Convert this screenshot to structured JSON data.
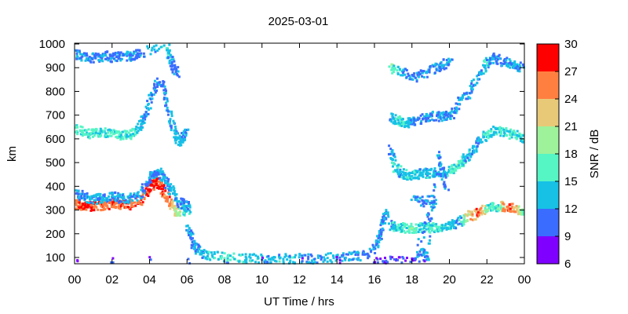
{
  "chart_data": {
    "type": "scatter",
    "title": "2025-03-01",
    "xlabel": "UT Time / hrs",
    "ylabel": "km",
    "xlim": [
      0,
      24
    ],
    "ylim": [
      80,
      1000
    ],
    "x_ticks": [
      "00",
      "02",
      "04",
      "06",
      "08",
      "10",
      "12",
      "14",
      "16",
      "18",
      "20",
      "22",
      "00"
    ],
    "y_ticks": [
      100,
      200,
      300,
      400,
      500,
      600,
      700,
      800,
      900,
      1000
    ],
    "colorbar": {
      "label": "SNR / dB",
      "min": 6,
      "max": 30,
      "ticks": [
        6,
        9,
        12,
        15,
        18,
        21,
        24,
        27,
        30
      ],
      "colors": [
        "#7f00ff",
        "#3a6cff",
        "#17c1e6",
        "#55f5c4",
        "#9ef29a",
        "#e8c978",
        "#ff7f41",
        "#ff0000"
      ]
    },
    "series": [
      {
        "points": [
          [
            0.0,
            330,
            27
          ],
          [
            0.3,
            325,
            27
          ],
          [
            0.6,
            322,
            28
          ],
          [
            1.0,
            320,
            27
          ],
          [
            1.5,
            325,
            26
          ],
          [
            2.0,
            330,
            27
          ],
          [
            2.5,
            322,
            27
          ],
          [
            3.0,
            330,
            26
          ],
          [
            3.5,
            350,
            27
          ],
          [
            4.0,
            400,
            28
          ],
          [
            4.3,
            430,
            28
          ],
          [
            4.6,
            400,
            27
          ],
          [
            5.0,
            340,
            25
          ],
          [
            5.3,
            300,
            22
          ],
          [
            5.7,
            300,
            17
          ],
          [
            6.0,
            310,
            14
          ]
        ]
      },
      {
        "points": [
          [
            0.0,
            370,
            12
          ],
          [
            0.5,
            360,
            12
          ],
          [
            1.0,
            350,
            13
          ],
          [
            1.5,
            355,
            12
          ],
          [
            2.0,
            360,
            12
          ],
          [
            2.5,
            350,
            13
          ],
          [
            3.0,
            355,
            12
          ],
          [
            3.5,
            370,
            12
          ],
          [
            4.0,
            440,
            12
          ],
          [
            4.3,
            470,
            11
          ],
          [
            4.7,
            440,
            12
          ],
          [
            5.0,
            400,
            12
          ],
          [
            5.5,
            340,
            12
          ],
          [
            6.0,
            320,
            12
          ]
        ]
      },
      {
        "points": [
          [
            0.0,
            650,
            16
          ],
          [
            0.5,
            630,
            16
          ],
          [
            1.0,
            625,
            16
          ],
          [
            1.5,
            630,
            15
          ],
          [
            2.0,
            625,
            16
          ],
          [
            2.5,
            620,
            15
          ],
          [
            3.0,
            625,
            16
          ],
          [
            3.5,
            660,
            13
          ],
          [
            3.8,
            720,
            12
          ],
          [
            4.2,
            820,
            11
          ],
          [
            4.6,
            850,
            11
          ],
          [
            5.0,
            720,
            12
          ],
          [
            5.3,
            620,
            13
          ],
          [
            5.6,
            590,
            13
          ],
          [
            5.9,
            630,
            12
          ]
        ]
      },
      {
        "points": [
          [
            0.0,
            960,
            12
          ],
          [
            0.5,
            950,
            12
          ],
          [
            1.0,
            945,
            11
          ],
          [
            1.5,
            955,
            12
          ],
          [
            2.0,
            945,
            11
          ],
          [
            2.5,
            955,
            12
          ],
          [
            3.0,
            950,
            12
          ],
          [
            3.4,
            965,
            11
          ],
          [
            4.9,
            1000,
            15
          ],
          [
            5.1,
            930,
            12
          ],
          [
            5.4,
            880,
            11
          ]
        ]
      },
      {
        "points": [
          [
            6.0,
            220,
            12
          ],
          [
            6.3,
            160,
            12
          ],
          [
            6.6,
            130,
            13
          ],
          [
            7.0,
            115,
            14
          ],
          [
            8.0,
            105,
            15
          ],
          [
            9.0,
            100,
            14
          ],
          [
            10.0,
            100,
            13
          ],
          [
            11.0,
            100,
            14
          ],
          [
            12.0,
            100,
            13
          ],
          [
            13.0,
            100,
            13
          ],
          [
            14.0,
            105,
            13
          ],
          [
            15.0,
            110,
            12
          ],
          [
            15.8,
            125,
            12
          ],
          [
            16.2,
            180,
            12
          ],
          [
            16.4,
            260,
            12
          ],
          [
            16.6,
            290,
            12
          ]
        ]
      },
      {
        "points": [
          [
            0.0,
            88,
            9
          ],
          [
            2.0,
            88,
            9
          ],
          [
            4.0,
            88,
            9
          ],
          [
            6.0,
            88,
            9
          ],
          [
            8.0,
            88,
            9
          ],
          [
            10.0,
            88,
            9
          ],
          [
            12.0,
            88,
            9
          ],
          [
            14.0,
            88,
            9
          ],
          [
            16.0,
            88,
            9
          ],
          [
            17.0,
            88,
            9
          ],
          [
            18.5,
            88,
            9
          ]
        ]
      },
      {
        "points": [
          [
            16.8,
            240,
            12
          ],
          [
            17.2,
            230,
            16
          ],
          [
            17.6,
            230,
            15
          ],
          [
            18.0,
            225,
            17
          ],
          [
            18.5,
            230,
            15
          ],
          [
            19.0,
            230,
            16
          ],
          [
            19.5,
            230,
            15
          ],
          [
            20.0,
            240,
            14
          ],
          [
            20.5,
            255,
            12
          ],
          [
            21.0,
            280,
            22
          ],
          [
            21.5,
            290,
            26
          ],
          [
            22.0,
            315,
            17
          ],
          [
            22.5,
            320,
            14
          ],
          [
            23.0,
            320,
            27
          ],
          [
            23.5,
            310,
            24
          ],
          [
            24.0,
            295,
            16
          ]
        ]
      },
      {
        "points": [
          [
            16.8,
            560,
            12
          ],
          [
            17.0,
            490,
            14
          ],
          [
            17.4,
            460,
            13
          ],
          [
            17.8,
            450,
            15
          ],
          [
            18.2,
            455,
            14
          ],
          [
            18.6,
            460,
            13
          ],
          [
            19.0,
            460,
            14
          ],
          [
            19.5,
            465,
            12
          ],
          [
            20.0,
            470,
            15
          ],
          [
            20.4,
            490,
            17
          ],
          [
            20.8,
            520,
            14
          ],
          [
            21.2,
            560,
            13
          ],
          [
            21.6,
            600,
            12
          ],
          [
            22.0,
            630,
            16
          ],
          [
            22.5,
            640,
            14
          ],
          [
            23.0,
            630,
            15
          ],
          [
            23.5,
            620,
            16
          ],
          [
            24.0,
            600,
            13
          ]
        ]
      },
      {
        "points": [
          [
            16.8,
            700,
            12
          ],
          [
            17.2,
            680,
            16
          ],
          [
            17.6,
            670,
            14
          ],
          [
            18.0,
            680,
            12
          ],
          [
            18.5,
            690,
            11
          ],
          [
            19.0,
            700,
            12
          ],
          [
            19.5,
            700,
            11
          ],
          [
            20.0,
            700,
            12
          ],
          [
            20.5,
            760,
            13
          ],
          [
            21.0,
            800,
            12
          ],
          [
            21.5,
            860,
            12
          ],
          [
            21.9,
            920,
            14
          ],
          [
            22.3,
            950,
            12
          ],
          [
            22.8,
            930,
            11
          ],
          [
            23.3,
            920,
            12
          ],
          [
            23.8,
            900,
            12
          ]
        ]
      },
      {
        "points": [
          [
            16.8,
            900,
            18
          ],
          [
            17.5,
            880,
            12
          ],
          [
            18.2,
            860,
            11
          ],
          [
            18.8,
            890,
            12
          ],
          [
            19.5,
            910,
            11
          ],
          [
            20.0,
            930,
            12
          ],
          [
            18.0,
            350,
            12
          ],
          [
            18.6,
            340,
            11
          ],
          [
            19.2,
            350,
            13
          ],
          [
            18.2,
            130,
            12
          ],
          [
            18.8,
            110,
            13
          ],
          [
            19.3,
            540,
            12
          ],
          [
            19.8,
            400,
            11
          ]
        ]
      }
    ]
  }
}
